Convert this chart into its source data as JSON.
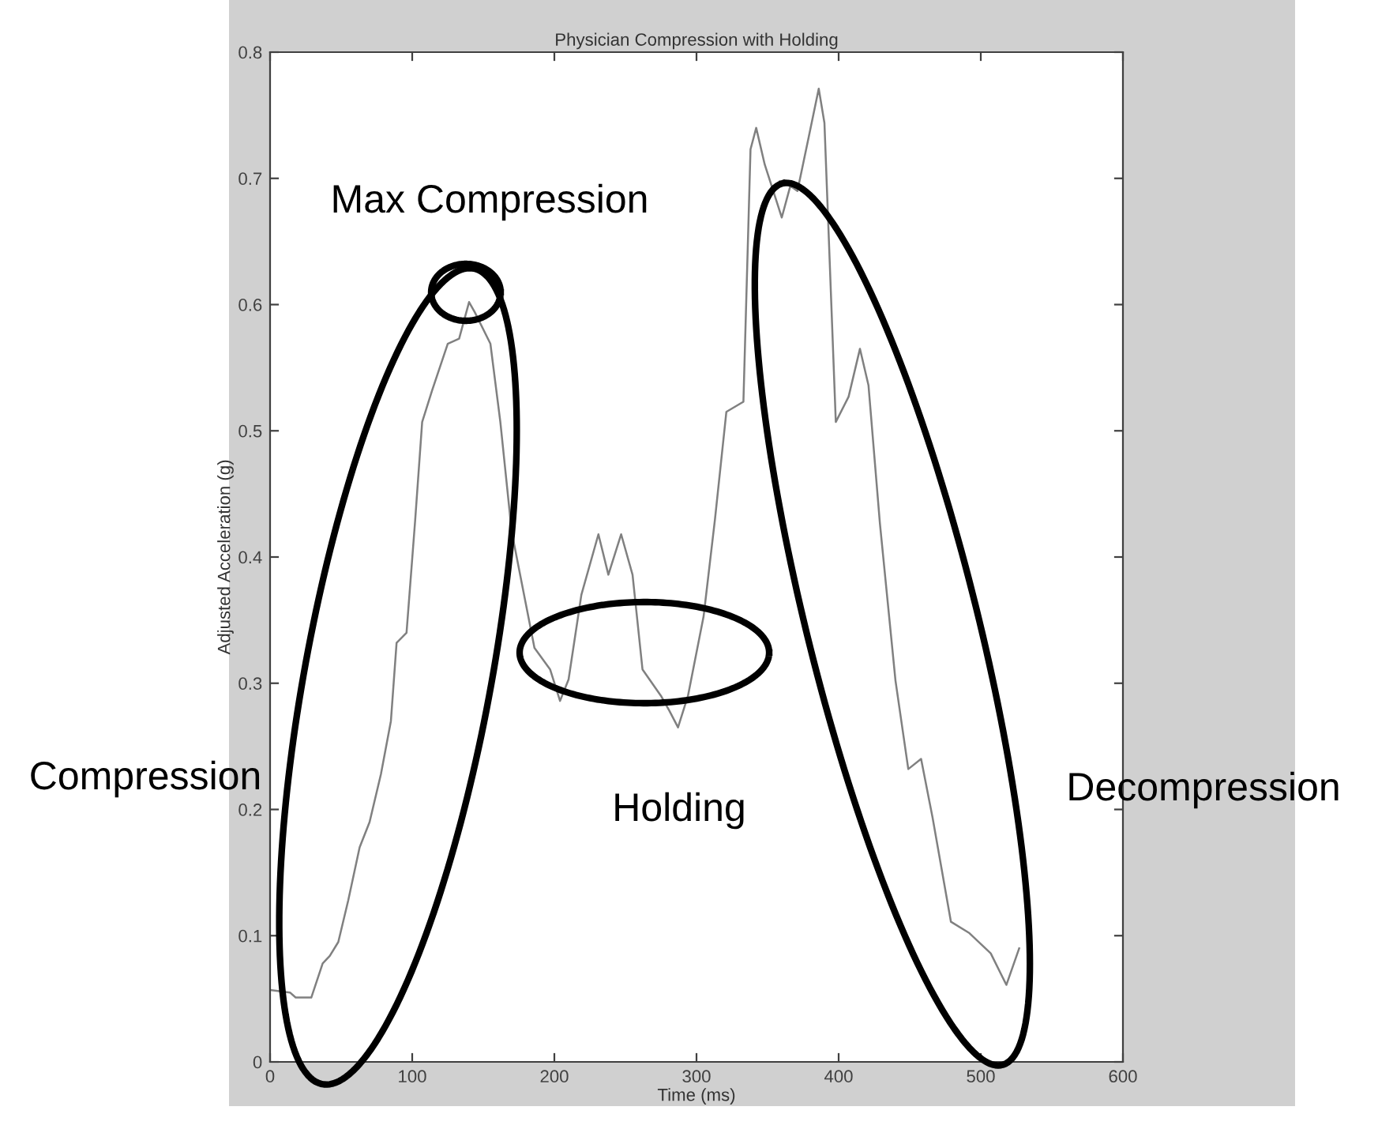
{
  "chart_data": {
    "type": "line",
    "title": "Physician Compression with Holding",
    "xlabel": "Time (ms)",
    "ylabel": "Adjusted Acceleration (g)",
    "x": [
      0,
      14,
      18,
      29,
      37,
      42,
      48,
      55,
      63,
      70,
      78,
      85,
      89,
      96,
      102,
      107,
      114,
      125,
      133,
      140,
      144,
      155,
      162,
      170,
      186,
      197,
      204,
      210,
      219,
      231,
      238,
      247,
      255,
      262,
      275,
      281,
      287,
      294,
      305,
      313,
      321,
      333,
      338,
      342,
      348,
      360,
      366,
      371,
      379,
      386,
      390,
      398,
      407,
      415,
      421,
      429,
      440,
      449,
      458,
      466,
      479,
      492,
      507,
      518,
      527
    ],
    "series": [
      {
        "color": "#808080",
        "values": [
          0.057,
          0.055,
          0.051,
          0.051,
          0.078,
          0.084,
          0.095,
          0.128,
          0.17,
          0.19,
          0.228,
          0.27,
          0.332,
          0.34,
          0.428,
          0.507,
          0.532,
          0.569,
          0.573,
          0.602,
          0.594,
          0.569,
          0.507,
          0.42,
          0.328,
          0.311,
          0.286,
          0.303,
          0.37,
          0.418,
          0.386,
          0.418,
          0.386,
          0.311,
          0.29,
          0.278,
          0.265,
          0.29,
          0.353,
          0.43,
          0.515,
          0.523,
          0.723,
          0.74,
          0.711,
          0.669,
          0.694,
          0.69,
          0.733,
          0.771,
          0.744,
          0.507,
          0.527,
          0.565,
          0.536,
          0.427,
          0.302,
          0.232,
          0.24,
          0.194,
          0.111,
          0.102,
          0.086,
          0.061,
          0.09
        ]
      }
    ],
    "xlim": [
      0,
      600
    ],
    "ylim": [
      0,
      0.8
    ],
    "xticks": [
      0,
      100,
      200,
      300,
      400,
      500,
      600
    ],
    "yticks": [
      0,
      0.1,
      0.2,
      0.3,
      0.4,
      0.5,
      0.6,
      0.7,
      0.8
    ],
    "grid": false,
    "line_style": "solid",
    "annotations": [
      "Max Compression",
      "Compression",
      "Holding",
      "Decompression"
    ]
  }
}
